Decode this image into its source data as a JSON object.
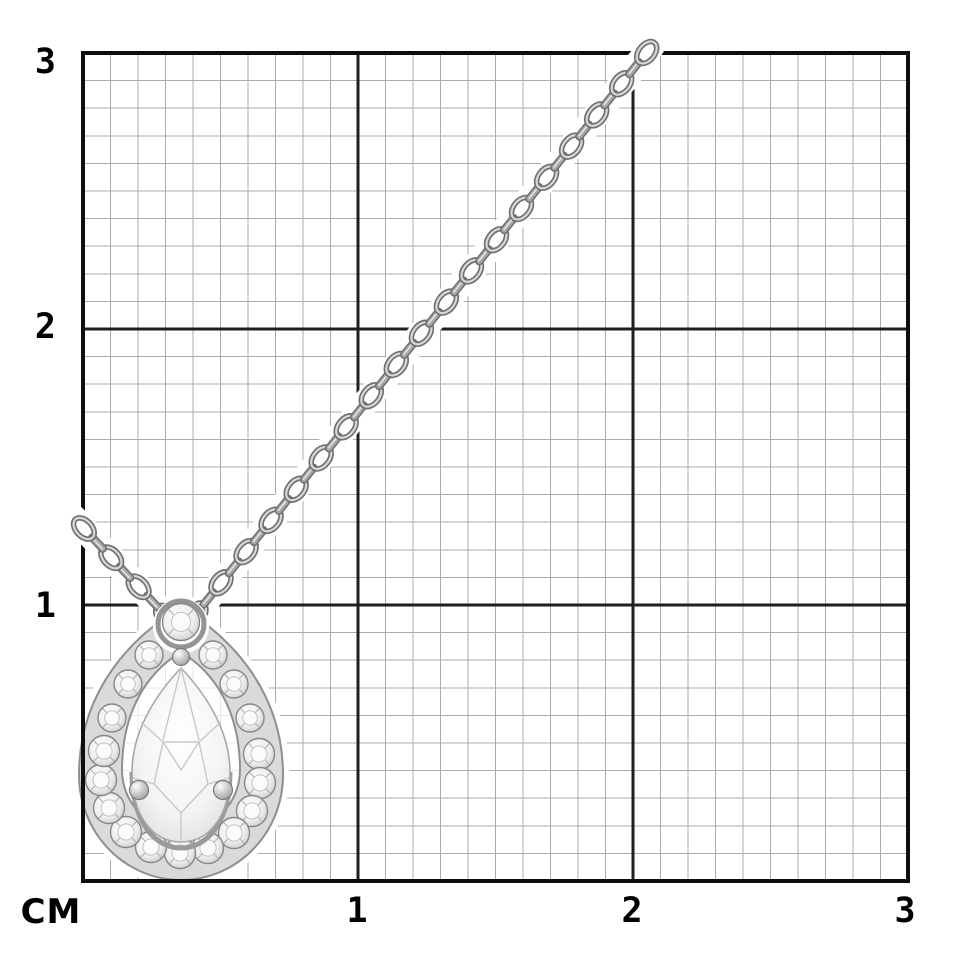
{
  "figure": {
    "subject": "pear-cut diamond halo pendant on silver cable chain photographed over a centimetre measurement grid",
    "unit_label": "CM",
    "y_axis": {
      "ticks": [
        "3",
        "2",
        "1"
      ]
    },
    "x_axis": {
      "ticks": [
        "1",
        "2",
        "3"
      ]
    },
    "grid": {
      "extent_cm": 3,
      "minor_per_cm": 10
    },
    "colors": {
      "background": "#ffffff",
      "grid_minor": "#ababab",
      "grid_major": "#1f1f1f",
      "grid_border": "#0e0e0e",
      "label_text": "#000000",
      "metal_dark": "#6f6f6f",
      "metal_mid": "#a6a6a6",
      "metal_light": "#d7d7d7",
      "band_fill": "#dadada",
      "band_stroke": "#8f8f8f",
      "stone_stroke": "#878787",
      "stone_inner": "#c2c2c2",
      "facet_line": "#c8c8c8"
    }
  }
}
